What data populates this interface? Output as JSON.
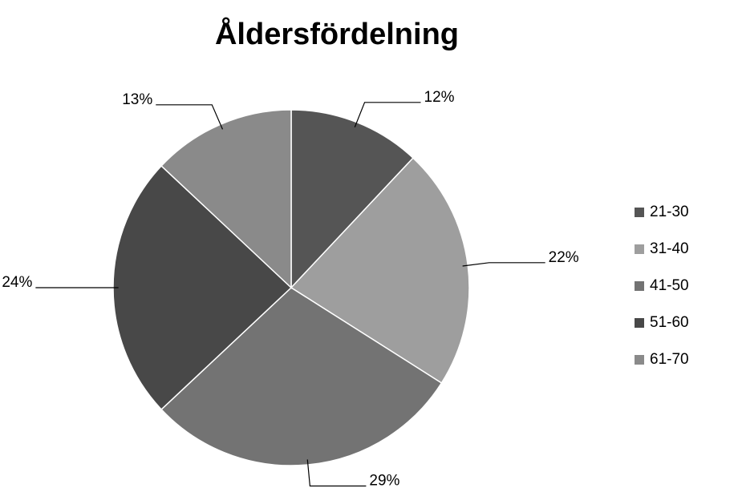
{
  "chart_data": {
    "type": "pie",
    "title": "Åldersfördelning",
    "categories": [
      "21-30",
      "31-40",
      "41-50",
      "51-60",
      "61-70"
    ],
    "values": [
      12,
      22,
      29,
      24,
      13
    ],
    "value_labels": [
      "12%",
      "22%",
      "29%",
      "24%",
      "13%"
    ],
    "colors": [
      "#555555",
      "#9e9e9e",
      "#737373",
      "#484848",
      "#8a8a8a"
    ],
    "legend": "right"
  }
}
